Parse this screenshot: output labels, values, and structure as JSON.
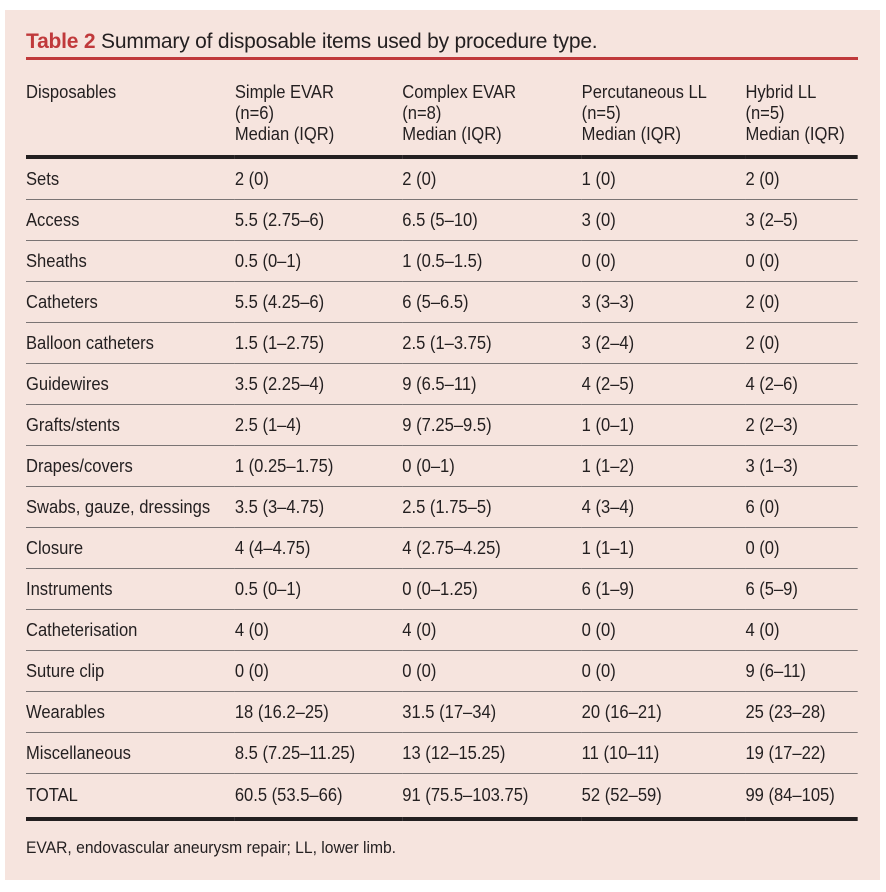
{
  "title": {
    "label": "Table 2",
    "text": "Summary of disposable items used by procedure type."
  },
  "headers": [
    {
      "l1": "Disposables",
      "l2": "",
      "l3": ""
    },
    {
      "l1": "Simple EVAR",
      "l2": "(n=6)",
      "l3": "Median (IQR)"
    },
    {
      "l1": "Complex EVAR",
      "l2": "(n=8)",
      "l3": "Median (IQR)"
    },
    {
      "l1": "Percutaneous LL",
      "l2": "(n=5)",
      "l3": "Median (IQR)"
    },
    {
      "l1": "Hybrid LL",
      "l2": "(n=5)",
      "l3": "Median (IQR)"
    }
  ],
  "rows": [
    [
      "Sets",
      "2 (0)",
      "2 (0)",
      "1 (0)",
      "2 (0)"
    ],
    [
      "Access",
      "5.5 (2.75–6)",
      "6.5 (5–10)",
      "3 (0)",
      "3 (2–5)"
    ],
    [
      "Sheaths",
      "0.5 (0–1)",
      "1 (0.5–1.5)",
      "0 (0)",
      "0 (0)"
    ],
    [
      "Catheters",
      "5.5 (4.25–6)",
      "6 (5–6.5)",
      "3 (3–3)",
      "2 (0)"
    ],
    [
      "Balloon catheters",
      "1.5 (1–2.75)",
      "2.5 (1–3.75)",
      "3 (2–4)",
      "2 (0)"
    ],
    [
      "Guidewires",
      "3.5 (2.25–4)",
      "9 (6.5–11)",
      "4 (2–5)",
      "4 (2–6)"
    ],
    [
      "Grafts/stents",
      "2.5 (1–4)",
      "9 (7.25–9.5)",
      "1 (0–1)",
      "2 (2–3)"
    ],
    [
      "Drapes/covers",
      "1 (0.25–1.75)",
      "0 (0–1)",
      "1 (1–2)",
      "3 (1–3)"
    ],
    [
      "Swabs, gauze, dressings",
      "3.5 (3–4.75)",
      "2.5 (1.75–5)",
      "4 (3–4)",
      "6 (0)"
    ],
    [
      "Closure",
      "4 (4–4.75)",
      "4 (2.75–4.25)",
      "1 (1–1)",
      "0 (0)"
    ],
    [
      "Instruments",
      "0.5 (0–1)",
      "0 (0–1.25)",
      "6 (1–9)",
      "6 (5–9)"
    ],
    [
      "Catheterisation",
      "4 (0)",
      "4 (0)",
      "0 (0)",
      "4 (0)"
    ],
    [
      "Suture clip",
      "0 (0)",
      "0 (0)",
      "0 (0)",
      "9 (6–11)"
    ],
    [
      "Wearables",
      "18 (16.2–25)",
      "31.5 (17–34)",
      "20 (16–21)",
      "25 (23–28)"
    ],
    [
      "Miscellaneous",
      "8.5 (7.25–11.25)",
      "13 (12–15.25)",
      "11 (10–11)",
      "19 (17–22)"
    ]
  ],
  "total": [
    "TOTAL",
    "60.5 (53.5–66)",
    "91 (75.5–103.75)",
    "52 (52–59)",
    "99 (84–105)"
  ],
  "footnote": "EVAR, endovascular aneurysm repair; LL, lower limb.",
  "colors": {
    "accent": "#c0393b",
    "background": "#f6e4de"
  }
}
